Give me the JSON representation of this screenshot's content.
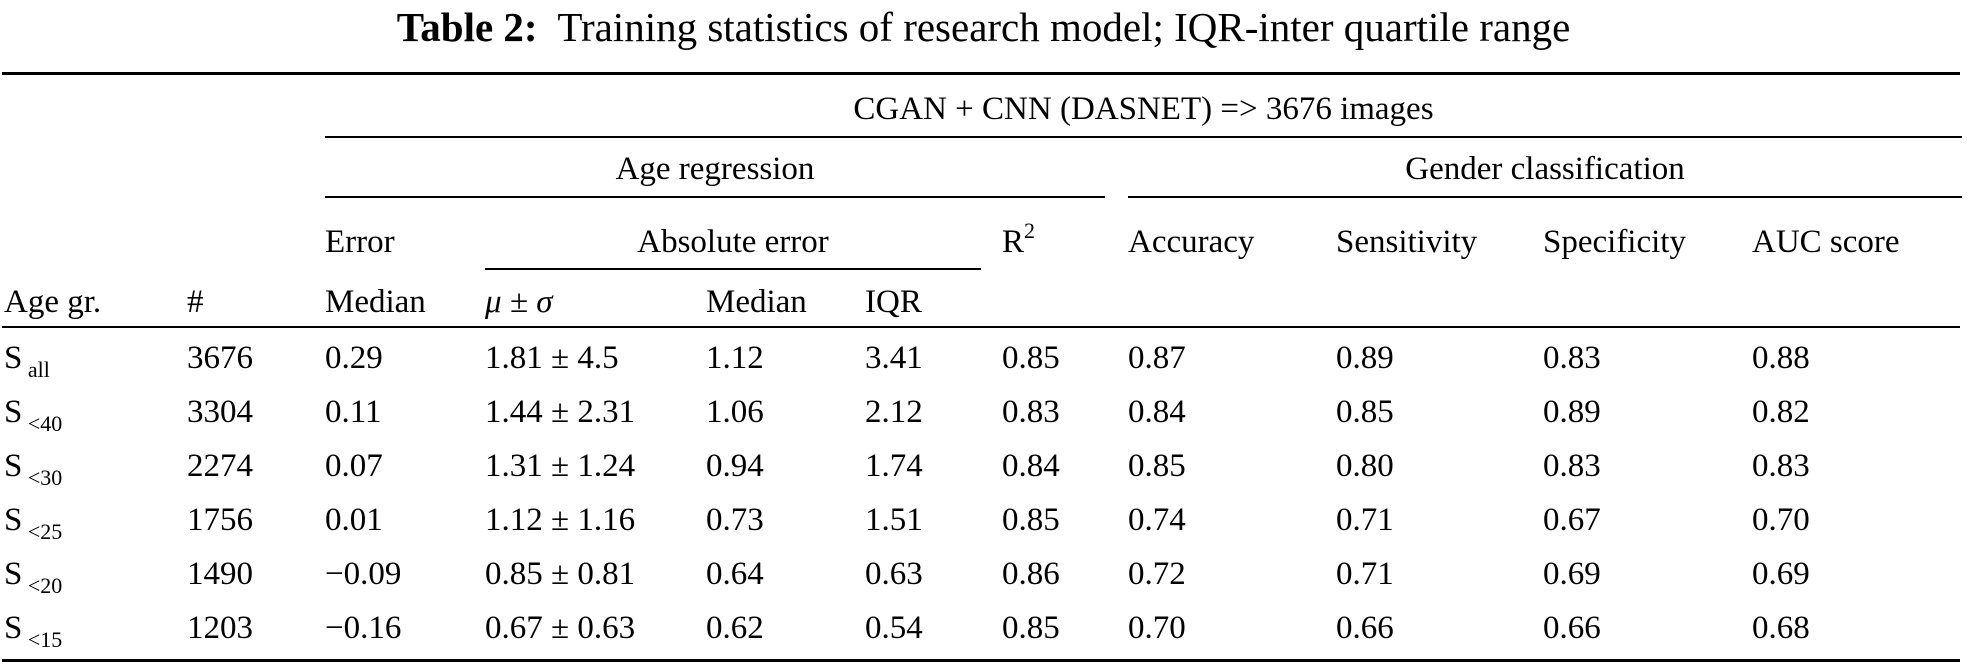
{
  "caption": {
    "label": "Table 2:",
    "text": "Training statistics of research model; IQR-inter quartile range"
  },
  "header": {
    "group": "CGAN + CNN (DASNET) => 3676 images",
    "age_regression": "Age regression",
    "gender_classification": "Gender classification",
    "error": "Error",
    "absolute_error": "Absolute error",
    "r2": "R",
    "r2_sup": "2",
    "accuracy": "Accuracy",
    "sensitivity": "Sensitivity",
    "specificity": "Specificity",
    "auc": "AUC score",
    "age_gr": "Age gr.",
    "count": "#",
    "median": "Median",
    "mu": "μ",
    "pm_sigma": " ± σ",
    "abs_median": "Median",
    "iqr": "IQR"
  },
  "rows": [
    {
      "s": "S",
      "sub": "all",
      "n": "3676",
      "err": "0.29",
      "mu": "1.81 ± 4.5",
      "med": "1.12",
      "iqr": "3.41",
      "r2": "0.85",
      "acc": "0.87",
      "sens": "0.89",
      "spec": "0.83",
      "auc": "0.88"
    },
    {
      "s": "S",
      "sub": "<40",
      "n": "3304",
      "err": "0.11",
      "mu": "1.44 ± 2.31",
      "med": "1.06",
      "iqr": "2.12",
      "r2": "0.83",
      "acc": "0.84",
      "sens": "0.85",
      "spec": "0.89",
      "auc": "0.82"
    },
    {
      "s": "S",
      "sub": "<30",
      "n": "2274",
      "err": "0.07",
      "mu": "1.31 ± 1.24",
      "med": "0.94",
      "iqr": "1.74",
      "r2": "0.84",
      "acc": "0.85",
      "sens": "0.80",
      "spec": "0.83",
      "auc": "0.83"
    },
    {
      "s": "S",
      "sub": "<25",
      "n": "1756",
      "err": "0.01",
      "mu": "1.12 ± 1.16",
      "med": "0.73",
      "iqr": "1.51",
      "r2": "0.85",
      "acc": "0.74",
      "sens": "0.71",
      "spec": "0.67",
      "auc": "0.70"
    },
    {
      "s": "S",
      "sub": "<20",
      "n": "1490",
      "err": "−0.09",
      "mu": "0.85 ± 0.81",
      "med": "0.64",
      "iqr": "0.63",
      "r2": "0.86",
      "acc": "0.72",
      "sens": "0.71",
      "spec": "0.69",
      "auc": "0.69"
    },
    {
      "s": "S",
      "sub": "<15",
      "n": "1203",
      "err": "−0.16",
      "mu": "0.67 ± 0.63",
      "med": "0.62",
      "iqr": "0.54",
      "r2": "0.85",
      "acc": "0.70",
      "sens": "0.66",
      "spec": "0.66",
      "auc": "0.68"
    }
  ]
}
